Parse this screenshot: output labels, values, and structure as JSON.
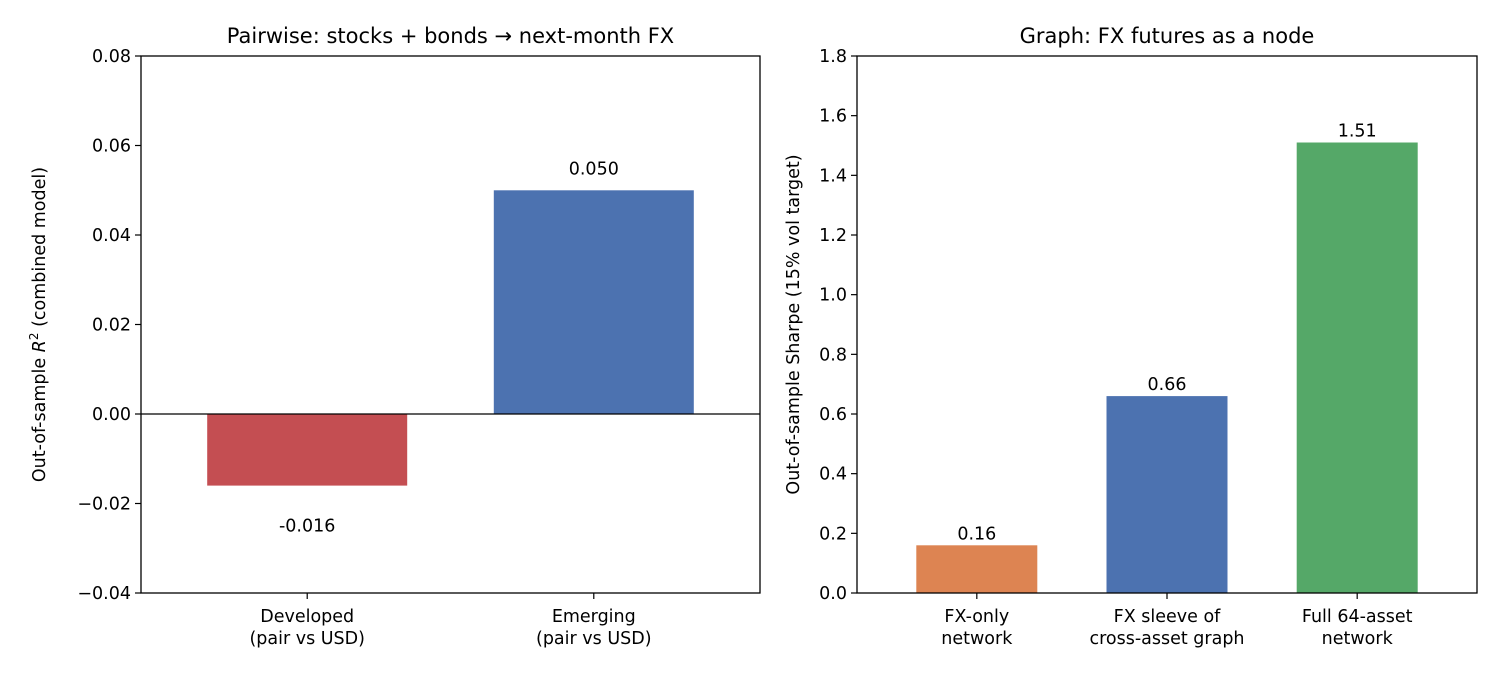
{
  "chart_data": [
    {
      "type": "bar",
      "title": "Pairwise: stocks + bonds → next-month FX",
      "xlabel": "",
      "ylabel": "Out-of-sample R² (combined model)",
      "ylabel_parts": [
        "Out-of-sample ",
        "R",
        "2",
        " (combined model)"
      ],
      "categories": [
        [
          "Developed",
          "(pair vs USD)"
        ],
        [
          "Emerging",
          "(pair vs USD)"
        ]
      ],
      "values": [
        -0.016,
        0.05
      ],
      "value_labels": [
        "-0.016",
        "0.050"
      ],
      "colors": [
        "#c44e52",
        "#4c72b0"
      ],
      "ylim": [
        -0.04,
        0.08
      ],
      "yticks": [
        -0.04,
        -0.02,
        0.0,
        0.02,
        0.04,
        0.06,
        0.08
      ],
      "ytick_labels": [
        "−0.04",
        "−0.02",
        "0.00",
        "0.02",
        "0.04",
        "0.06",
        "0.08"
      ],
      "zero_line": true,
      "grid": false
    },
    {
      "type": "bar",
      "title": "Graph: FX futures as a node",
      "xlabel": "",
      "ylabel": "Out-of-sample Sharpe (15% vol target)",
      "categories": [
        [
          "FX-only",
          "network"
        ],
        [
          "FX sleeve of",
          "cross-asset graph"
        ],
        [
          "Full 64-asset",
          "network"
        ]
      ],
      "values": [
        0.16,
        0.66,
        1.51
      ],
      "value_labels": [
        "0.16",
        "0.66",
        "1.51"
      ],
      "colors": [
        "#dd8452",
        "#4c72b0",
        "#55a868"
      ],
      "ylim": [
        0.0,
        1.8
      ],
      "yticks": [
        0.0,
        0.2,
        0.4,
        0.6,
        0.8,
        1.0,
        1.2,
        1.4,
        1.6,
        1.8
      ],
      "ytick_labels": [
        "0.0",
        "0.2",
        "0.4",
        "0.6",
        "0.8",
        "1.0",
        "1.2",
        "1.4",
        "1.6",
        "1.8"
      ],
      "zero_line": false,
      "grid": false
    }
  ]
}
